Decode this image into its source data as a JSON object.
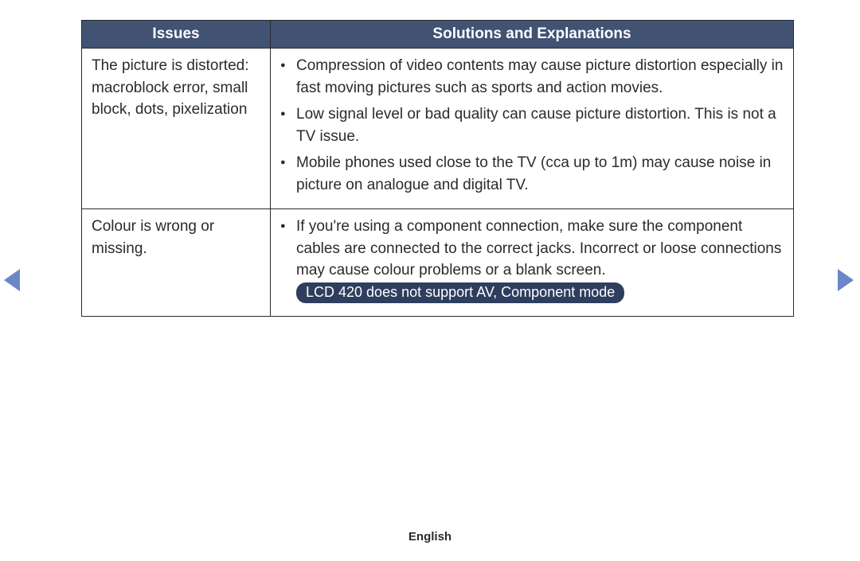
{
  "colors": {
    "header_bg": "#415273",
    "header_text": "#ffffff",
    "pill_bg": "#2f3e5e",
    "pill_text": "#ffffff",
    "arrow": "#6a87c7",
    "border": "#2b2b2b",
    "body_text": "#2b2b2b"
  },
  "table": {
    "headers": {
      "issues": "Issues",
      "solutions": "Solutions and Explanations"
    },
    "rows": [
      {
        "issue": "The picture is distorted: macroblock error, small block, dots, pixelization",
        "bullets": [
          {
            "text": "Compression of video contents may cause picture distortion especially in fast moving pictures such as sports and action movies."
          },
          {
            "text": "Low signal level or bad quality can cause picture distortion. This is not a TV issue."
          },
          {
            "text": "Mobile phones used close to the TV (cca up to 1m) may cause noise in picture on analogue and digital TV."
          }
        ]
      },
      {
        "issue": "Colour is wrong or missing.",
        "bullets": [
          {
            "text": "If you're using a component connection, make sure the component cables are connected to the correct jacks. Incorrect or loose connections may cause colour problems or a blank screen. ",
            "pill": "LCD 420 does not support AV, Component mode"
          }
        ]
      }
    ]
  },
  "footer": {
    "language": "English"
  }
}
